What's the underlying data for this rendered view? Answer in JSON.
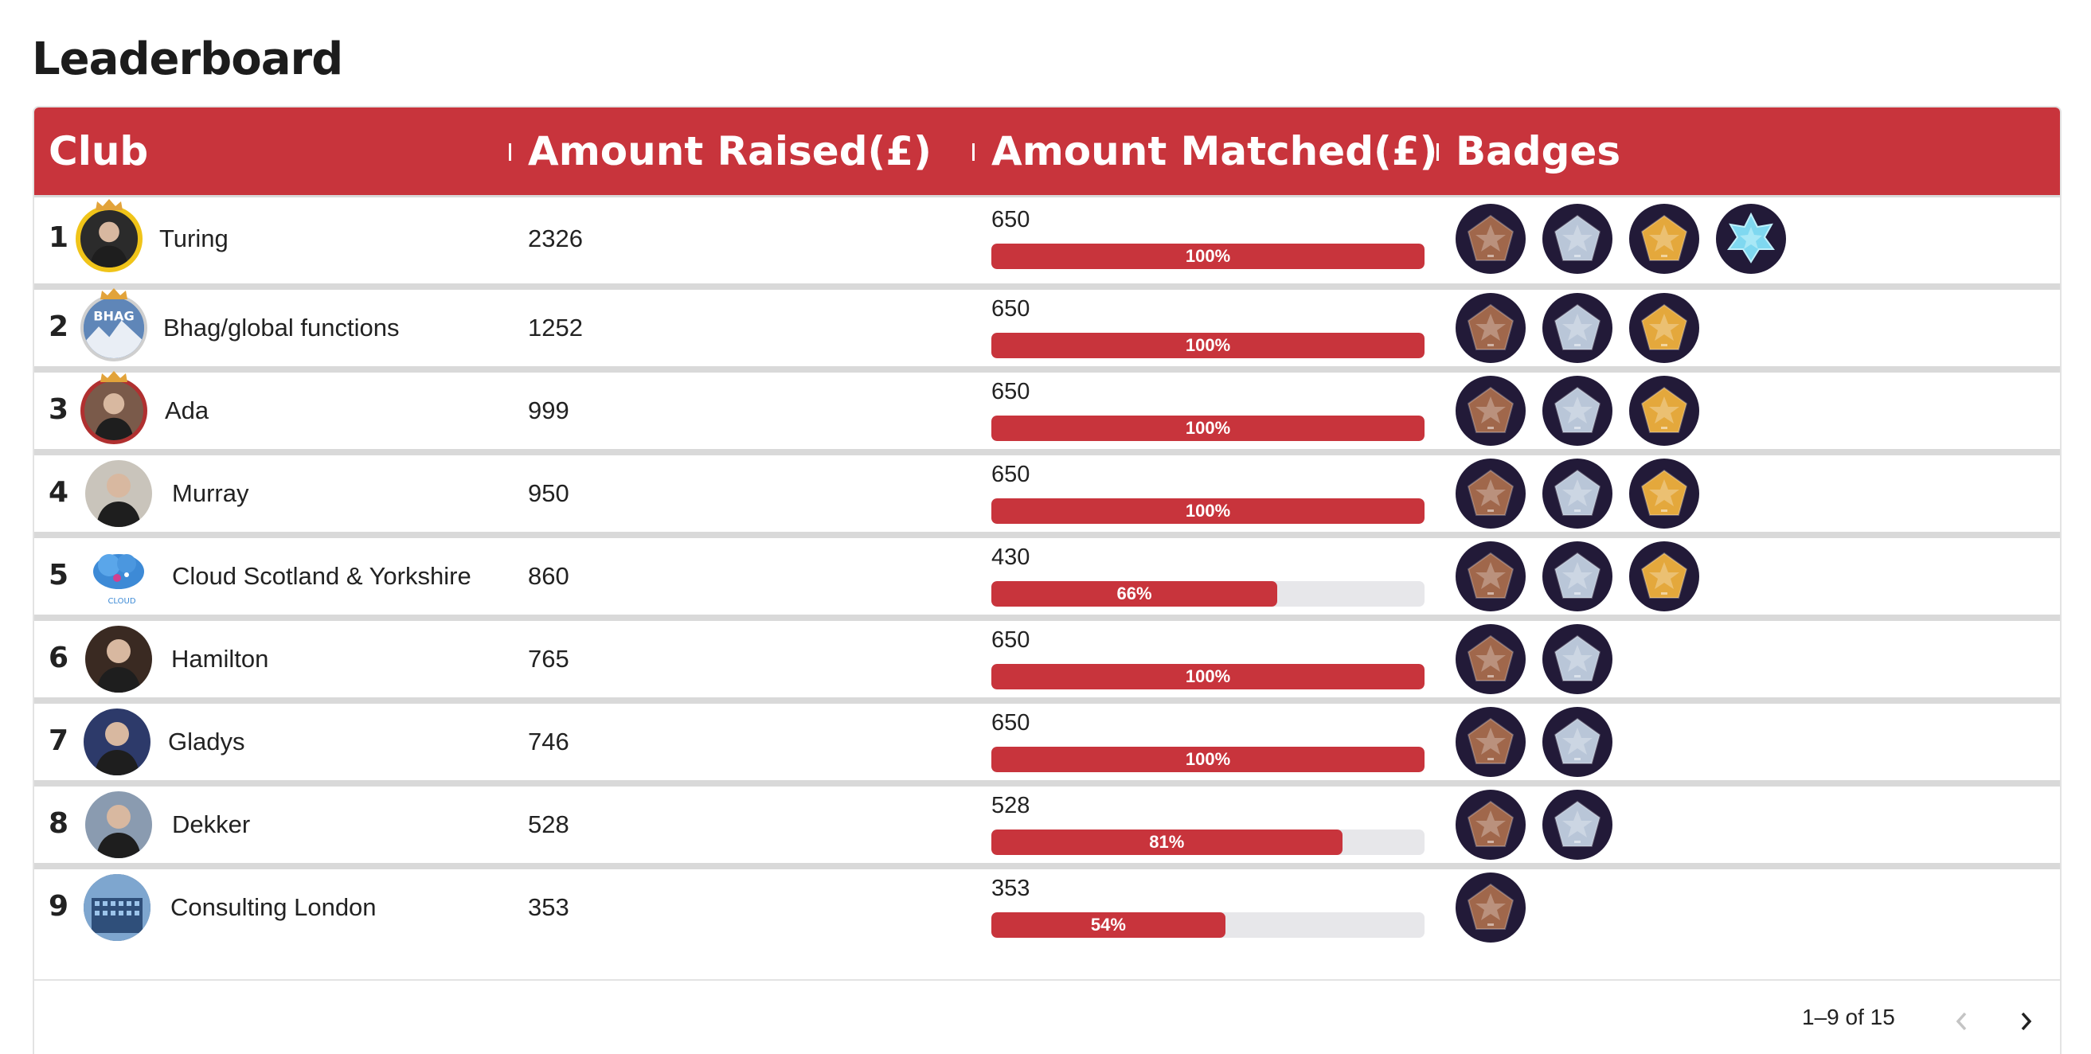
{
  "page": {
    "title": "Leaderboard"
  },
  "columns": {
    "club": "Club",
    "raised": "Amount Raised(£)",
    "matched": "Amount Matched(£)",
    "badges": "Badges"
  },
  "colors": {
    "brand": "#c8343c",
    "badge_bg": "#221a38",
    "bronze": "#a0674b",
    "silver": "#b9c6d8",
    "gold": "#e4a83c",
    "diamond": "#7fd8f0"
  },
  "rows": [
    {
      "rank": "1",
      "name": "Turing",
      "raised": "2326",
      "matched": "650",
      "pct": 100,
      "pct_label": "100%",
      "badges": [
        "bronze",
        "silver",
        "gold",
        "diamond"
      ],
      "avatar": "portrait-icon"
    },
    {
      "rank": "2",
      "name": "Bhag/global functions",
      "raised": "1252",
      "matched": "650",
      "pct": 100,
      "pct_label": "100%",
      "badges": [
        "bronze",
        "silver",
        "gold"
      ],
      "avatar": "bhag-logo",
      "avatar_text": "BHAG"
    },
    {
      "rank": "3",
      "name": "Ada",
      "raised": "999",
      "matched": "650",
      "pct": 100,
      "pct_label": "100%",
      "badges": [
        "bronze",
        "silver",
        "gold"
      ],
      "avatar": "portrait-icon"
    },
    {
      "rank": "4",
      "name": "Murray",
      "raised": "950",
      "matched": "650",
      "pct": 100,
      "pct_label": "100%",
      "badges": [
        "bronze",
        "silver",
        "gold"
      ],
      "avatar": "portrait-icon"
    },
    {
      "rank": "5",
      "name": "Cloud Scotland & Yorkshire",
      "raised": "860",
      "matched": "430",
      "pct": 66,
      "pct_label": "66%",
      "badges": [
        "bronze",
        "silver",
        "gold"
      ],
      "avatar": "cloud-logo",
      "avatar_text": "CLOUD"
    },
    {
      "rank": "6",
      "name": "Hamilton",
      "raised": "765",
      "matched": "650",
      "pct": 100,
      "pct_label": "100%",
      "badges": [
        "bronze",
        "silver"
      ],
      "avatar": "portrait-icon"
    },
    {
      "rank": "7",
      "name": "Gladys",
      "raised": "746",
      "matched": "650",
      "pct": 100,
      "pct_label": "100%",
      "badges": [
        "bronze",
        "silver"
      ],
      "avatar": "portrait-icon"
    },
    {
      "rank": "8",
      "name": "Dekker",
      "raised": "528",
      "matched": "528",
      "pct": 81,
      "pct_label": "81%",
      "badges": [
        "bronze",
        "silver"
      ],
      "avatar": "portrait-icon"
    },
    {
      "rank": "9",
      "name": "Consulting London",
      "raised": "353",
      "matched": "353",
      "pct": 54,
      "pct_label": "54%",
      "badges": [
        "bronze"
      ],
      "avatar": "building-icon"
    }
  ],
  "pagination": {
    "text": "1–9 of 15",
    "prev_icon": "chevron-left-icon",
    "next_icon": "chevron-right-icon"
  }
}
